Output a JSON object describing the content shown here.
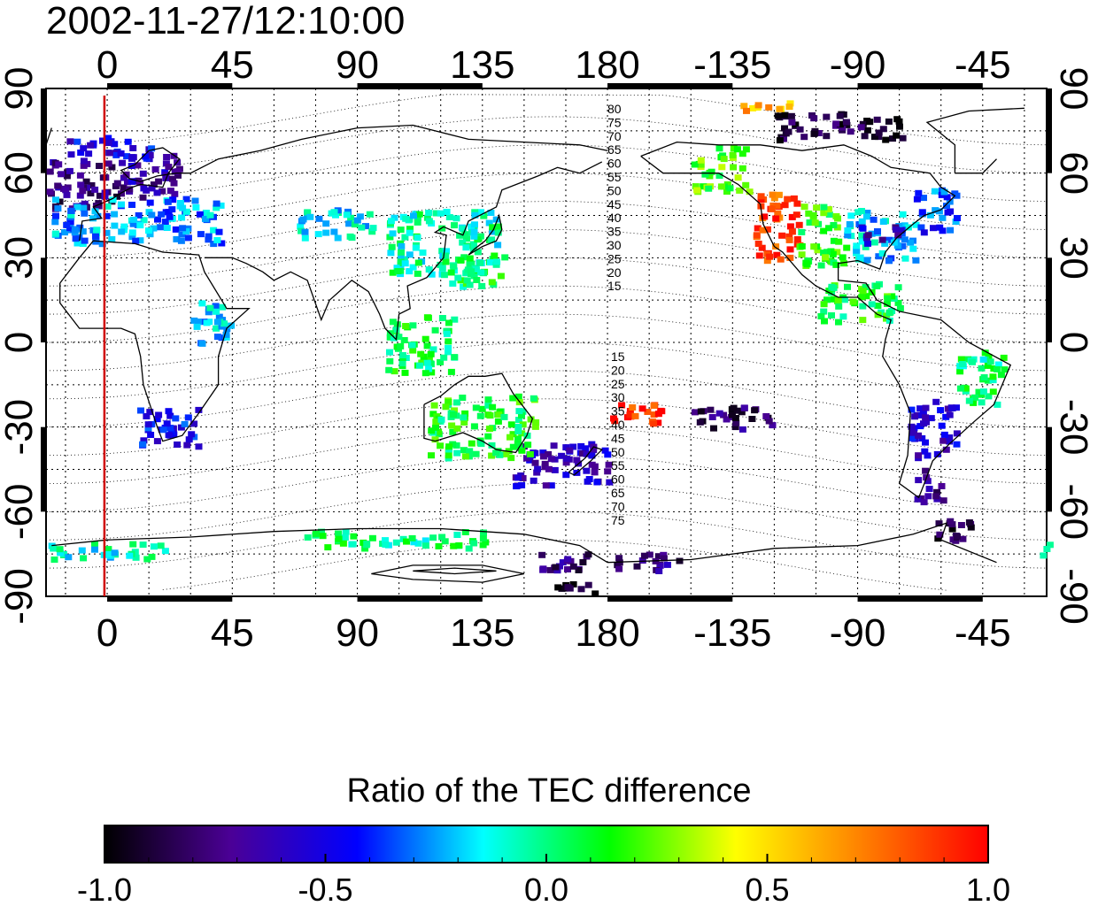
{
  "timestamp": "2002-11-27/12:10:00",
  "colorbar": {
    "title": "Ratio of the TEC difference",
    "tick_labels": [
      "-1.0",
      "-0.5",
      "0.0",
      "0.5",
      "1.0"
    ],
    "range": [
      -1.0,
      1.0
    ],
    "colormap": [
      "#000000",
      "#4b0096",
      "#0000ff",
      "#00ffff",
      "#00ff00",
      "#ffff00",
      "#ff8000",
      "#ff0000"
    ]
  },
  "map": {
    "projection": "equirectangular",
    "center_longitude": 135,
    "lon_ticks_top": [
      "0",
      "45",
      "90",
      "135",
      "180",
      "-135",
      "-90",
      "-45"
    ],
    "lon_ticks_bottom": [
      "0",
      "45",
      "90",
      "135",
      "180",
      "-135",
      "-90",
      "-45"
    ],
    "lat_ticks_left": [
      "90",
      "60",
      "30",
      "0",
      "-30",
      "-60",
      "-90"
    ],
    "lat_ticks_right": [
      "90",
      "60",
      "30",
      "0",
      "-30",
      "-60",
      "-90"
    ],
    "lon_tick_values": [
      0,
      45,
      90,
      135,
      180,
      225,
      270,
      315
    ],
    "lat_tick_values": [
      90,
      60,
      30,
      0,
      -30,
      -60,
      -90
    ],
    "grid": "dotted every 15 degrees",
    "marker_line": {
      "longitude": -1,
      "color": "#d00000"
    },
    "contour_labels_north": [
      "80",
      "75",
      "70",
      "65",
      "60",
      "55",
      "50",
      "45",
      "40",
      "35",
      "30",
      "25",
      "20",
      "15"
    ],
    "contour_labels_south": [
      "15",
      "20",
      "25",
      "30",
      "35",
      "40",
      "45",
      "50",
      "55",
      "60",
      "65",
      "70",
      "75"
    ]
  },
  "tec_regions": [
    {
      "lon": [
        -22,
        5
      ],
      "lat": [
        48,
        66
      ],
      "value": -0.75
    },
    {
      "lon": [
        5,
        25
      ],
      "lat": [
        52,
        68
      ],
      "value": -0.65
    },
    {
      "lon": [
        -20,
        40
      ],
      "lat": [
        36,
        52
      ],
      "value": -0.25
    },
    {
      "lon": [
        -15,
        15
      ],
      "lat": [
        66,
        74
      ],
      "value": -0.5
    },
    {
      "lon": [
        68,
        95
      ],
      "lat": [
        38,
        48
      ],
      "value": -0.15
    },
    {
      "lon": [
        100,
        140
      ],
      "lat": [
        25,
        48
      ],
      "value": -0.05
    },
    {
      "lon": [
        120,
        142
      ],
      "lat": [
        20,
        32
      ],
      "value": 0.05
    },
    {
      "lon": [
        -150,
        -130
      ],
      "lat": [
        54,
        70
      ],
      "value": 0.2
    },
    {
      "lon": [
        -128,
        -112
      ],
      "lat": [
        30,
        55
      ],
      "value": 0.85
    },
    {
      "lon": [
        -112,
        -95
      ],
      "lat": [
        28,
        50
      ],
      "value": 0.15
    },
    {
      "lon": [
        -95,
        -70
      ],
      "lat": [
        30,
        48
      ],
      "value": -0.2
    },
    {
      "lon": [
        -90,
        -75
      ],
      "lat": [
        36,
        42
      ],
      "value": -0.6
    },
    {
      "lon": [
        -70,
        -55
      ],
      "lat": [
        40,
        55
      ],
      "value": -0.35
    },
    {
      "lon": [
        -120,
        -75
      ],
      "lat": [
        72,
        82
      ],
      "value": -0.9
    },
    {
      "lon": [
        -135,
        -115
      ],
      "lat": [
        82,
        86
      ],
      "value": 0.6
    },
    {
      "lon": [
        -105,
        -75
      ],
      "lat": [
        8,
        22
      ],
      "value": 0.1
    },
    {
      "lon": [
        -72,
        -55
      ],
      "lat": [
        -40,
        -20
      ],
      "value": -0.55
    },
    {
      "lon": [
        -70,
        -60
      ],
      "lat": [
        -56,
        -44
      ],
      "value": -0.7
    },
    {
      "lon": [
        -65,
        -48
      ],
      "lat": [
        -70,
        -62
      ],
      "value": -0.85
    },
    {
      "lon": [
        -55,
        -38
      ],
      "lat": [
        -22,
        -2
      ],
      "value": 0.0
    },
    {
      "lon": [
        10,
        32
      ],
      "lat": [
        -36,
        -22
      ],
      "value": -0.45
    },
    {
      "lon": [
        145,
        180
      ],
      "lat": [
        -50,
        -35
      ],
      "value": -0.6
    },
    {
      "lon": [
        115,
        153
      ],
      "lat": [
        -40,
        -18
      ],
      "value": 0.1
    },
    {
      "lon": [
        -25,
        20
      ],
      "lat": [
        -76,
        -70
      ],
      "value": -0.1
    },
    {
      "lon": [
        70,
        135
      ],
      "lat": [
        -72,
        -66
      ],
      "value": 0.0
    },
    {
      "lon": [
        155,
        205
      ],
      "lat": [
        -80,
        -74
      ],
      "value": -0.75
    },
    {
      "lon": [
        160,
        180
      ],
      "lat": [
        -88,
        -84
      ],
      "value": -1.0
    },
    {
      "lon": [
        180,
        200
      ],
      "lat": [
        -28,
        -20
      ],
      "value": 0.9
    },
    {
      "lon": [
        210,
        240
      ],
      "lat": [
        -30,
        -22
      ],
      "value": -0.8
    },
    {
      "lon": [
        30,
        45
      ],
      "lat": [
        0,
        15
      ],
      "value": -0.2
    },
    {
      "lon": [
        100,
        125
      ],
      "lat": [
        -10,
        10
      ],
      "value": 0.05
    }
  ]
}
